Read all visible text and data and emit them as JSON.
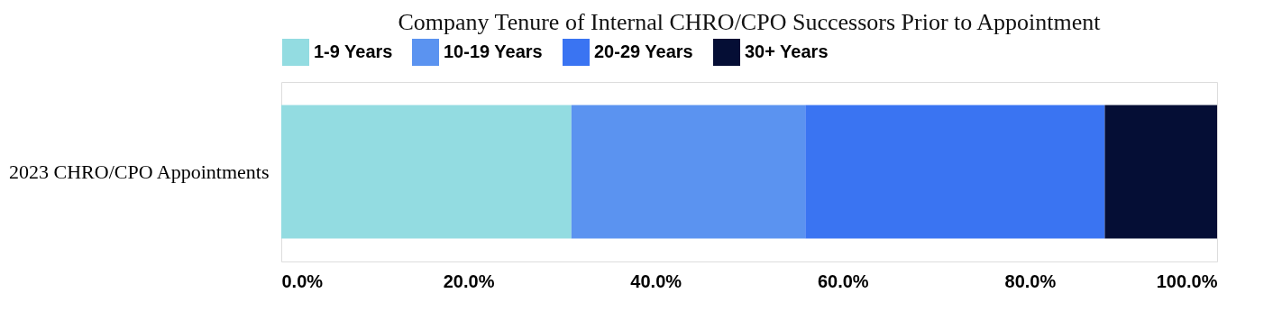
{
  "chart_data": {
    "type": "bar",
    "orientation": "horizontal",
    "stacked": true,
    "title": "Company Tenure of Internal CHRO/CPO Successors Prior to Appointment",
    "categories": [
      "2023 CHRO/CPO Appointments"
    ],
    "series": [
      {
        "name": "1-9 Years",
        "color": "#93dce1",
        "values": [
          31
        ]
      },
      {
        "name": "10-19 Years",
        "color": "#5b93f0",
        "values": [
          25
        ]
      },
      {
        "name": "20-29 Years",
        "color": "#3a74f2",
        "values": [
          32
        ]
      },
      {
        "name": "30+ Years",
        "color": "#050e35",
        "values": [
          12
        ]
      }
    ],
    "xlim": [
      0,
      100
    ],
    "xticks": [
      {
        "value": 0,
        "label": "0.0%"
      },
      {
        "value": 20,
        "label": "20.0%"
      },
      {
        "value": 40,
        "label": "40.0%"
      },
      {
        "value": 60,
        "label": "60.0%"
      },
      {
        "value": 80,
        "label": "80.0%"
      },
      {
        "value": 100,
        "label": "100.0%"
      }
    ],
    "legend": "top",
    "grid": false
  }
}
